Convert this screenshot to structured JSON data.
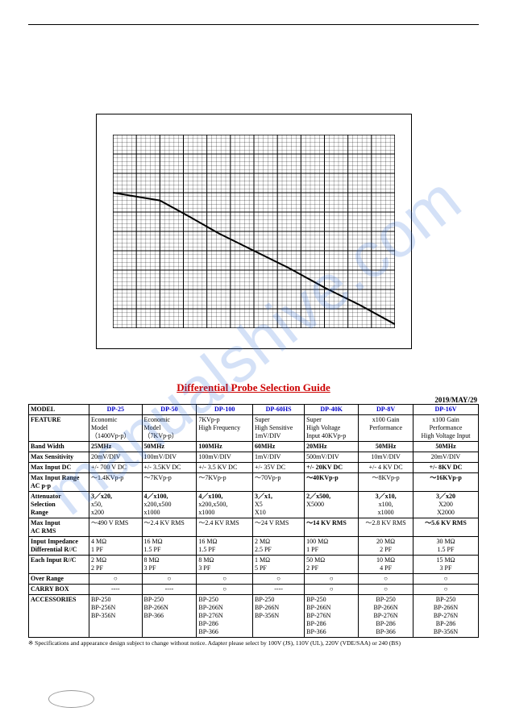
{
  "watermark": "manualshive.com",
  "chart": {
    "type": "line",
    "xlim": [
      0,
      12
    ],
    "ylim": [
      0,
      10
    ],
    "x_major_step": 1,
    "y_major_step": 1,
    "minor_divisions": 5,
    "grid_color": "#000000",
    "border_color": "#000000",
    "bg_color": "#ffffff",
    "line_color": "#000000",
    "line_width": 2,
    "points": [
      {
        "x": 0.0,
        "y": 7.0
      },
      {
        "x": 2.0,
        "y": 6.6
      },
      {
        "x": 3.2,
        "y": 5.8
      },
      {
        "x": 4.5,
        "y": 4.9
      },
      {
        "x": 6.0,
        "y": 4.0
      },
      {
        "x": 7.5,
        "y": 3.1
      },
      {
        "x": 9.0,
        "y": 2.1
      },
      {
        "x": 10.5,
        "y": 1.2
      },
      {
        "x": 12.0,
        "y": 0.2
      }
    ]
  },
  "table_title": "Differential Probe Selection Guide",
  "date": "2019/MAY/29",
  "columns": [
    "MODEL",
    "DP-25",
    "DP-50",
    "DP-100",
    "DP-60HS",
    "DP-40K",
    "DP-8V",
    "DP-16V"
  ],
  "rows": [
    {
      "head": "FEATURE",
      "cells": [
        "Economic\nModel\n（1400Vp-p）",
        "Economic\nModel\n（7KVp-p）",
        "7KVp-p\nHigh Frequency",
        "Super\nHigh Sensitive\n1mV/DIV",
        "Super\nHigh Voltage\nInput 40KVp-p",
        "x100 Gain\nPerformance",
        "x100 Gain\nPerformance\nHigh Voltage Input"
      ]
    },
    {
      "head": "Band Width",
      "bold": true,
      "cells": [
        "25MHz",
        "50MHz",
        "100MHz",
        "60MHz",
        "20MHz",
        "50MHz",
        "50MHz"
      ]
    },
    {
      "head": "Max Sensitivity",
      "cells": [
        "20mV/DIV",
        "100mV/DIV",
        "100mV/DIV",
        "1mV/DIV",
        "500mV/DIV",
        "10mV/DIV",
        "20mV/DIV"
      ]
    },
    {
      "head": "Max Input DC",
      "cells": [
        "+/- 700 V DC",
        "+/- 3.5KV DC",
        "+/- 3.5 KV DC",
        "+/- 35V DC",
        "+/- 20KV DC",
        "+/- 4 KV DC",
        "+/- 8KV DC"
      ],
      "boldcols": [
        4,
        6
      ]
    },
    {
      "head": "Max Input Range\nAC p-p",
      "cells": [
        "～1.4KVp-p",
        "～7KVp-p",
        "～7KVp-p",
        "～70Vp-p",
        "～40KVp-p",
        "～8KVp-p",
        "～16KVp-p"
      ],
      "boldcols": [
        4,
        6
      ]
    },
    {
      "head": "Attenuator\nSelection\nRange",
      "cells": [
        "3／x20,\n   x50,\n   x200",
        "4／x100,\n   x200,x500\n   x1000",
        "4／x100,\n   x200,x500,\n   x1000",
        "3／x1,\n    X5\n    X10",
        "2／x500,\n    X5000",
        "3／x10,\n   x100,\n   x1000",
        "3／x20\n   X200\n   X2000"
      ],
      "boldcols": [
        0,
        1,
        2,
        3,
        4,
        5,
        6
      ],
      "boldfirstline": true
    },
    {
      "head": "Max Input\nAC RMS",
      "cells": [
        "～490 V RMS",
        "～2.4 KV RMS",
        "～2.4 KV RMS",
        "～24 V RMS",
        "～14 KV RMS",
        "～2.8 KV RMS",
        "～5.6 KV RMS"
      ],
      "boldcols": [
        4,
        6
      ]
    },
    {
      "head": "Input Impedance\nDifferential R//C",
      "cells": [
        "4 MΩ\n1 PF",
        "16 MΩ\n1.5 PF",
        "16 MΩ\n1.5 PF",
        "2 MΩ\n2.5 PF",
        "100 MΩ\n1 PF",
        "20 MΩ\n2 PF",
        "30 MΩ\n1.5 PF"
      ]
    },
    {
      "head": "Each Input R//C",
      "cells": [
        "2 MΩ\n2 PF",
        "8 MΩ\n3 PF",
        "8 MΩ\n3 PF",
        "1 MΩ\n5 PF",
        "50 MΩ\n2 PF",
        "10 MΩ\n4 PF",
        "15 MΩ\n3 PF"
      ]
    },
    {
      "head": "Over Range",
      "cells": [
        "○",
        "○",
        "○",
        "○",
        "○",
        "○",
        "○"
      ],
      "center": true
    },
    {
      "head": "CARRY BOX",
      "cells": [
        "----",
        "----",
        "○",
        "----",
        "○",
        "○",
        "○"
      ],
      "center": true
    },
    {
      "head": "ACCESSORIES",
      "cells": [
        "BP-250\nBP-256N\nBP-356N",
        "BP-250\nBP-266N\nBP-366",
        "BP-250\nBP-266N\nBP-276N\nBP-286\nBP-366",
        "BP-250\nBP-266N\nBP-356N",
        "BP-250\nBP-266N\nBP-276N\nBP-286\nBP-366",
        "BP-250\nBP-266N\nBP-276N\nBP-286\nBP-366",
        "BP-250\nBP-266N\nBP-276N\nBP-286\nBP-356N"
      ]
    }
  ],
  "footnote": "※ Specifications and appearance design subject to change without notice. Adapter please select by 100V (JS), 110V (UL), 220V (VDE/SAA) or 240 (BS)",
  "colors": {
    "title": "#cc0000",
    "model_header": "#0000cc",
    "text": "#000000",
    "watermark": "rgba(60,120,220,0.22)"
  }
}
